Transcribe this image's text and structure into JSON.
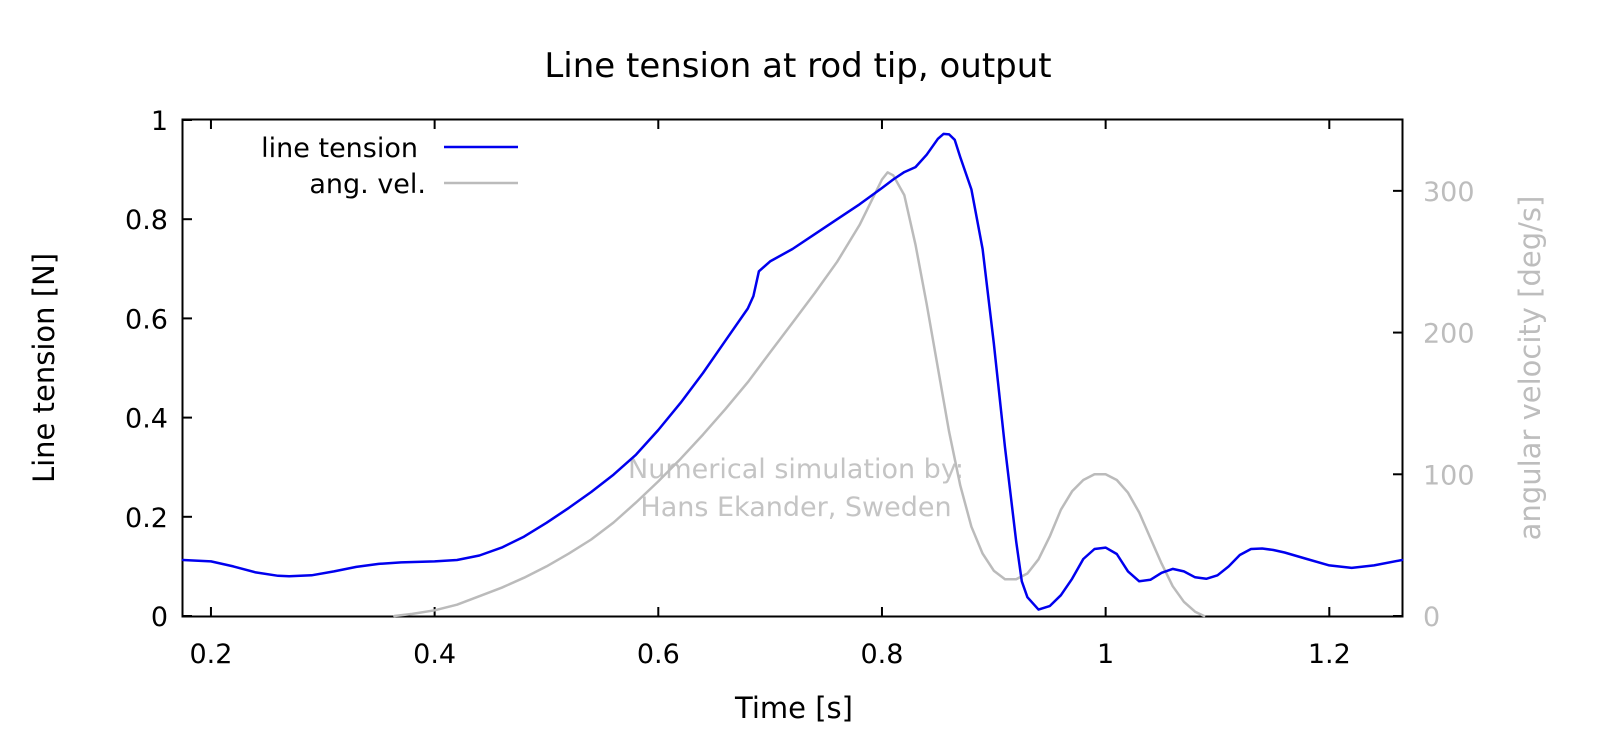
{
  "chart_data": {
    "type": "line",
    "title": "Line tension at rod tip, output",
    "xlabel": "Time [s]",
    "ylabel": "Line tension [N]",
    "y2label": "angular velocity [deg/s]",
    "xlim": [
      0.175,
      1.265
    ],
    "ylim": [
      0,
      1
    ],
    "y2lim": [
      0,
      350
    ],
    "xticks": [
      0.2,
      0.4,
      0.6,
      0.8,
      1.0,
      1.2
    ],
    "xtick_labels": [
      "0.2",
      "0.4",
      "0.6",
      "0.8",
      "1",
      "1.2"
    ],
    "yticks": [
      0,
      0.2,
      0.4,
      0.6,
      0.8,
      1.0
    ],
    "ytick_labels": [
      "0",
      "0.2",
      "0.4",
      "0.6",
      "0.8",
      "1"
    ],
    "y2ticks": [
      0,
      100,
      200,
      300
    ],
    "y2tick_labels": [
      "0",
      "100",
      "200",
      "300"
    ],
    "grid": false,
    "legend_position": "top-left",
    "series": [
      {
        "name": "line tension",
        "axis": "y",
        "color": "#0000ee",
        "x": [
          0.175,
          0.2,
          0.22,
          0.24,
          0.26,
          0.27,
          0.29,
          0.31,
          0.33,
          0.35,
          0.37,
          0.4,
          0.42,
          0.44,
          0.46,
          0.48,
          0.5,
          0.52,
          0.54,
          0.56,
          0.58,
          0.6,
          0.62,
          0.64,
          0.66,
          0.68,
          0.685,
          0.69,
          0.7,
          0.72,
          0.74,
          0.76,
          0.78,
          0.8,
          0.81,
          0.82,
          0.83,
          0.84,
          0.85,
          0.855,
          0.86,
          0.865,
          0.87,
          0.88,
          0.89,
          0.9,
          0.91,
          0.92,
          0.925,
          0.93,
          0.94,
          0.95,
          0.96,
          0.97,
          0.98,
          0.99,
          1.0,
          1.01,
          1.02,
          1.03,
          1.04,
          1.05,
          1.06,
          1.07,
          1.08,
          1.09,
          1.1,
          1.11,
          1.12,
          1.13,
          1.14,
          1.15,
          1.16,
          1.18,
          1.2,
          1.22,
          1.24,
          1.265
        ],
        "values": [
          0.113,
          0.11,
          0.1,
          0.088,
          0.081,
          0.08,
          0.082,
          0.09,
          0.099,
          0.105,
          0.108,
          0.11,
          0.113,
          0.122,
          0.138,
          0.16,
          0.188,
          0.218,
          0.25,
          0.285,
          0.325,
          0.375,
          0.43,
          0.49,
          0.555,
          0.62,
          0.645,
          0.695,
          0.715,
          0.74,
          0.77,
          0.8,
          0.83,
          0.863,
          0.88,
          0.895,
          0.905,
          0.93,
          0.962,
          0.972,
          0.971,
          0.96,
          0.925,
          0.86,
          0.74,
          0.55,
          0.34,
          0.15,
          0.07,
          0.038,
          0.013,
          0.02,
          0.042,
          0.075,
          0.115,
          0.135,
          0.138,
          0.125,
          0.09,
          0.07,
          0.073,
          0.087,
          0.095,
          0.09,
          0.078,
          0.075,
          0.082,
          0.1,
          0.123,
          0.135,
          0.136,
          0.133,
          0.128,
          0.115,
          0.102,
          0.097,
          0.102,
          0.113
        ]
      },
      {
        "name": "ang. vel.",
        "axis": "y2",
        "color": "#bbbbbb",
        "x": [
          0.364,
          0.38,
          0.4,
          0.42,
          0.44,
          0.46,
          0.48,
          0.5,
          0.52,
          0.54,
          0.56,
          0.58,
          0.6,
          0.62,
          0.64,
          0.66,
          0.68,
          0.7,
          0.72,
          0.74,
          0.76,
          0.78,
          0.79,
          0.8,
          0.805,
          0.81,
          0.82,
          0.83,
          0.84,
          0.85,
          0.86,
          0.87,
          0.88,
          0.89,
          0.9,
          0.91,
          0.92,
          0.93,
          0.94,
          0.95,
          0.96,
          0.97,
          0.98,
          0.99,
          1.0,
          1.01,
          1.02,
          1.03,
          1.04,
          1.05,
          1.06,
          1.07,
          1.08,
          1.088
        ],
        "values": [
          0,
          1.5,
          4,
          8,
          14,
          20,
          27,
          35,
          44,
          54,
          66,
          80,
          95,
          111,
          128,
          146,
          165,
          186,
          207,
          228,
          250,
          276,
          292,
          308,
          313,
          311,
          297,
          262,
          220,
          175,
          130,
          92,
          63,
          44,
          32,
          26,
          26,
          30,
          40,
          56,
          75,
          88,
          96,
          100,
          100,
          96,
          87,
          73,
          55,
          37,
          21,
          10,
          3,
          0
        ]
      }
    ],
    "annotations": [
      "Numerical simulation by:",
      "Hans Ekander, Sweden"
    ]
  }
}
